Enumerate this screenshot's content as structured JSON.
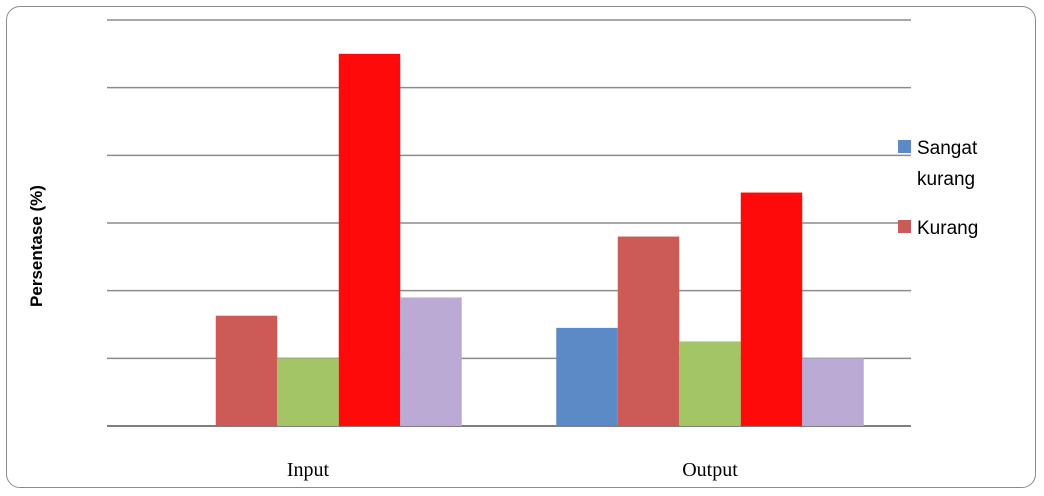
{
  "chart_data": {
    "type": "bar",
    "title": "",
    "xlabel": "",
    "ylabel": "Persentase (%)",
    "categories": [
      "Input",
      "Output"
    ],
    "ylim": [
      0,
      60
    ],
    "gridlines": [
      0,
      10,
      20,
      30,
      40,
      50,
      60
    ],
    "grid": true,
    "legend_position": "right",
    "series": [
      {
        "name": "Sangat kurang",
        "color": "#5b8ac7",
        "values": [
          0,
          14.5
        ]
      },
      {
        "name": "Kurang",
        "color": "#cc5a56",
        "values": [
          16.3,
          28
        ]
      },
      {
        "name": "",
        "color": "#a3c565",
        "values": [
          10,
          12.5
        ]
      },
      {
        "name": "",
        "color": "#ff0a0a",
        "values": [
          55,
          34.5
        ]
      },
      {
        "name": "",
        "color": "#bbaad3",
        "values": [
          19,
          10
        ]
      }
    ]
  }
}
